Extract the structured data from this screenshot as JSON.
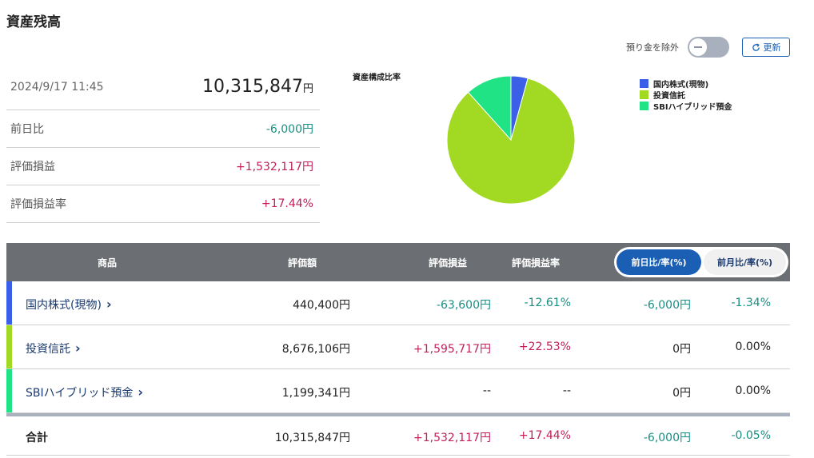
{
  "page": {
    "title": "資産残高"
  },
  "toolbar": {
    "exclude_deposit_label": "預り金を除外",
    "refresh_label": "更新"
  },
  "summary": {
    "datetime": "2024/9/17 11:45",
    "total_value": "10,315,847",
    "unit": "円",
    "rows": [
      {
        "label": "前日比",
        "value": "-6,000円"
      },
      {
        "label": "評価損益",
        "value": "+1,532,117円"
      },
      {
        "label": "評価損益率",
        "value": "+17.44%"
      }
    ]
  },
  "chart": {
    "title": "資産構成比率",
    "legend": [
      {
        "label": "国内株式(現物)",
        "color": "#3b5fe6"
      },
      {
        "label": "投資信託",
        "color": "#a2d923"
      },
      {
        "label": "SBIハイブリッド預金",
        "color": "#1fe384"
      }
    ]
  },
  "chart_data": {
    "type": "pie",
    "categories": [
      "国内株式(現物)",
      "投資信託",
      "SBIハイブリッド預金"
    ],
    "values": [
      440400,
      8676106,
      1199341
    ],
    "colors": [
      "#3b5fe6",
      "#a2d923",
      "#1fe384"
    ],
    "title": "資産構成比率",
    "legend_position": "right"
  },
  "table": {
    "headers": {
      "product": "商品",
      "value": "評価額",
      "gain": "評価損益",
      "gain_rate": "評価損益率"
    },
    "segment": {
      "active": "前日比/率(%)",
      "inactive": "前月比/率(%)"
    },
    "rows": [
      {
        "name": "国内株式(現物)",
        "color": "#3b5fe6",
        "value": "440,400円",
        "gain": "-63,600円",
        "gain_rate": "-12.61%",
        "day_value": "-6,000円",
        "day_rate": "-1.34%"
      },
      {
        "name": "投資信託",
        "color": "#a2d923",
        "value": "8,676,106円",
        "gain": "+1,595,717円",
        "gain_rate": "+22.53%",
        "day_value": "0円",
        "day_rate": "0.00%"
      },
      {
        "name": "SBIハイブリッド預金",
        "color": "#1fe384",
        "value": "1,199,341円",
        "gain": "--",
        "gain_rate": "--",
        "day_value": "0円",
        "day_rate": "0.00%"
      }
    ],
    "total": {
      "name": "合計",
      "value": "10,315,847円",
      "gain": "+1,532,117円",
      "gain_rate": "+17.44%",
      "day_value": "-6,000円",
      "day_rate": "-0.05%"
    }
  }
}
